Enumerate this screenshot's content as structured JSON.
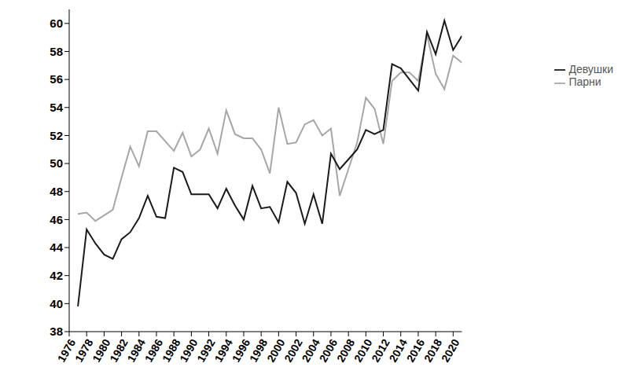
{
  "chart_data": {
    "type": "line",
    "x": [
      1977,
      1978,
      1979,
      1980,
      1981,
      1982,
      1983,
      1984,
      1985,
      1986,
      1987,
      1988,
      1989,
      1990,
      1991,
      1992,
      1993,
      1994,
      1995,
      1996,
      1997,
      1998,
      1999,
      2000,
      2001,
      2002,
      2003,
      2004,
      2005,
      2006,
      2007,
      2008,
      2009,
      2010,
      2011,
      2012,
      2013,
      2014,
      2015,
      2016,
      2017,
      2018,
      2019,
      2020,
      2021
    ],
    "series": [
      {
        "name": "Парни",
        "color": "#a6a6a6",
        "values": [
          46.4,
          46.5,
          45.9,
          46.3,
          46.7,
          49.0,
          51.2,
          49.8,
          52.3,
          52.3,
          51.6,
          50.9,
          52.2,
          50.5,
          51.0,
          52.5,
          50.7,
          53.8,
          52.1,
          51.8,
          51.8,
          51.0,
          49.3,
          54.0,
          51.4,
          51.5,
          52.8,
          53.1,
          52.0,
          52.5,
          47.7,
          49.6,
          51.5,
          54.7,
          53.9,
          51.4,
          55.9,
          56.5,
          56.5,
          55.9,
          59.2,
          56.4,
          55.3,
          57.7,
          57.2
        ]
      },
      {
        "name": "Девушки",
        "color": "#1a1a1a",
        "values": [
          39.8,
          45.3,
          44.3,
          43.5,
          43.2,
          44.6,
          45.1,
          46.1,
          47.7,
          46.2,
          46.1,
          49.7,
          49.4,
          47.8,
          47.8,
          47.8,
          46.8,
          48.2,
          47.0,
          46.0,
          48.4,
          46.8,
          46.9,
          45.8,
          48.7,
          47.9,
          45.7,
          47.8,
          45.7,
          50.7,
          49.6,
          50.3,
          51.0,
          52.4,
          52.1,
          52.4,
          57.1,
          56.8,
          56.0,
          55.2,
          59.4,
          57.8,
          60.2,
          58.1,
          59.1
        ]
      }
    ],
    "xlim": [
      1976,
      2021
    ],
    "xticks": [
      1976,
      1978,
      1980,
      1982,
      1984,
      1986,
      1988,
      1990,
      1992,
      1994,
      1996,
      1998,
      2000,
      2002,
      2004,
      2006,
      2008,
      2010,
      2012,
      2014,
      2016,
      2018,
      2020
    ],
    "ylim": [
      38,
      61
    ],
    "yticks": [
      38,
      40,
      42,
      44,
      46,
      48,
      50,
      52,
      54,
      56,
      58,
      60
    ],
    "grid": false,
    "legend": "right"
  }
}
